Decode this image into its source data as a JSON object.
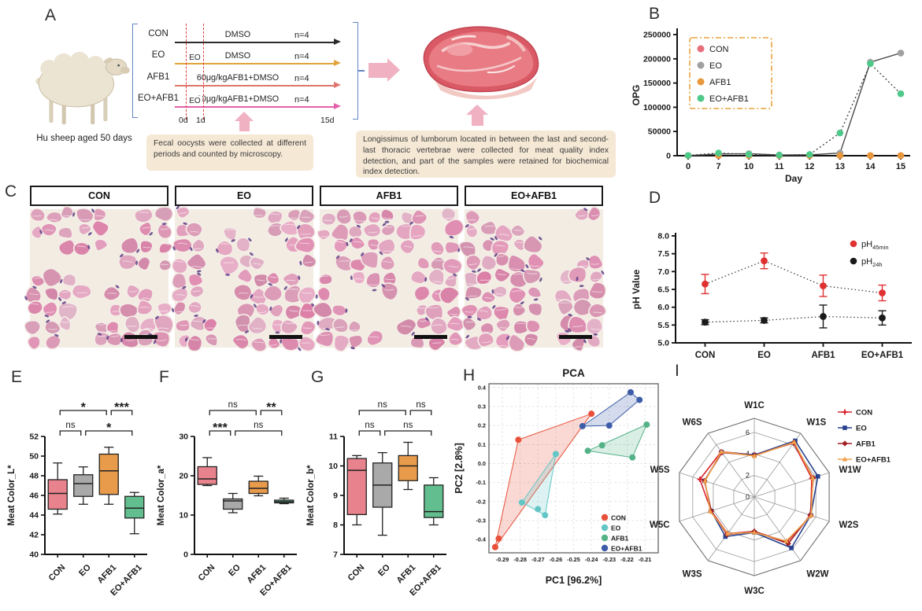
{
  "figure": {
    "panel_a": {
      "tag": "A",
      "sheep_caption": "Hu sheep aged 50 days",
      "eo_box_label": "EO",
      "groups": [
        {
          "name": "CON",
          "treatment": "DMSO",
          "n": "n=4",
          "color": "#2b2b2b"
        },
        {
          "name": "EO",
          "treatment": "DMSO",
          "n": "n=4",
          "color": "#e2a33c",
          "has_eo_box": true
        },
        {
          "name": "AFB1",
          "treatment": "60μg/kgAFB1+DMSO",
          "n": "n=4",
          "color": "#e0756f"
        },
        {
          "name": "EO+AFB1",
          "treatment": "60μg/kgAFB1+DMSO",
          "n": "n=4",
          "color": "#e45fa8",
          "has_eo_box": true
        }
      ],
      "time_start": "0d",
      "time_second": "1d",
      "time_end": "15d",
      "note_left": "Fecal oocysts were collected at different periods and counted by microscopy.",
      "note_right": "Longissimus of lumborum located in between the last and second-last thoracic vertebrae  were collected for meat quality index detection, and part of the samples were retained for biochemical index detection."
    },
    "panel_b_tag": "B",
    "panel_c": {
      "tag": "C",
      "groups": [
        "CON",
        "EO",
        "AFB1",
        "EO+AFB1"
      ]
    },
    "panel_d_tag": "D",
    "panel_e_tag": "E",
    "panel_f_tag": "F",
    "panel_g_tag": "G",
    "panel_h_tag": "H",
    "panel_i_tag": "I"
  },
  "chart_data": [
    {
      "id": "B",
      "type": "line",
      "xlabel": "Day",
      "ylabel": "OPG",
      "x": [
        "0",
        "7",
        "10",
        "11",
        "12",
        "13",
        "14",
        "15"
      ],
      "ylim": [
        0,
        250000
      ],
      "yticks": [
        0,
        50000,
        100000,
        150000,
        200000,
        250000
      ],
      "legend_border_color": "#e9a23b",
      "legend_position": "top-left",
      "series": [
        {
          "name": "CON",
          "color": "#e76f7c",
          "line": "none",
          "values": [
            200,
            300,
            300,
            200,
            300,
            300,
            300,
            300
          ]
        },
        {
          "name": "EO",
          "color": "#a0a0a0",
          "line": "solid",
          "values": [
            300,
            3500,
            4200,
            1500,
            1800,
            5500,
            193000,
            212000
          ]
        },
        {
          "name": "AFB1",
          "color": "#e8973b",
          "line": "none",
          "values": [
            250,
            400,
            350,
            250,
            350,
            400,
            350,
            300
          ]
        },
        {
          "name": "EO+AFB1",
          "color": "#4ec98a",
          "line": "dotted",
          "values": [
            500,
            5500,
            2800,
            1200,
            2500,
            47000,
            190000,
            128000
          ]
        }
      ]
    },
    {
      "id": "D",
      "type": "point-error",
      "ylabel": "pH Value",
      "categories": [
        "CON",
        "EO",
        "AFB1",
        "EO+AFB1"
      ],
      "ylim": [
        5.0,
        8.0
      ],
      "yticks": [
        5.0,
        5.5,
        6.0,
        6.5,
        7.0,
        7.5,
        8.0
      ],
      "series": [
        {
          "name": "pH45min",
          "legend_base": "pH",
          "legend_sub": "45min",
          "color": "#e03131",
          "values": [
            6.65,
            7.3,
            6.6,
            6.4
          ],
          "errors": [
            0.27,
            0.22,
            0.3,
            0.22
          ]
        },
        {
          "name": "pH24h",
          "legend_base": "pH",
          "legend_sub": "24h",
          "color": "#1a1a1a",
          "values": [
            5.58,
            5.63,
            5.74,
            5.7
          ],
          "errors": [
            0.07,
            0.07,
            0.32,
            0.2
          ]
        }
      ]
    },
    {
      "id": "E",
      "type": "box",
      "ylabel": "Meat Color_L*",
      "categories": [
        "CON",
        "EO",
        "AFB1",
        "EO+AFB1"
      ],
      "ylim": [
        40,
        52
      ],
      "yticks": [
        40,
        42,
        44,
        46,
        48,
        50,
        52
      ],
      "colors": [
        "#e8828c",
        "#a9a9a9",
        "#e89b4b",
        "#62be8e"
      ],
      "boxes": [
        [
          44.1,
          44.6,
          46.2,
          47.6,
          49.3
        ],
        [
          45.1,
          45.9,
          47.2,
          48.1,
          48.9
        ],
        [
          45.1,
          46.1,
          48.5,
          50.2,
          50.9
        ],
        [
          42.1,
          43.7,
          44.7,
          45.9,
          46.3
        ]
      ],
      "significance": [
        {
          "a": 0,
          "b": 1,
          "label": "ns",
          "row": 1
        },
        {
          "a": 1,
          "b": 3,
          "label": "*",
          "row": 1
        },
        {
          "a": 0,
          "b": 2,
          "label": "*",
          "row": 2
        },
        {
          "a": 2,
          "b": 3,
          "label": "***",
          "row": 2
        }
      ]
    },
    {
      "id": "F",
      "type": "box",
      "ylabel": "Meat Color_a*",
      "categories": [
        "CON",
        "EO",
        "AFB1",
        "EO+AFB1"
      ],
      "ylim": [
        0,
        30
      ],
      "yticks": [
        0,
        10,
        20,
        30
      ],
      "colors": [
        "#e8828c",
        "#a9a9a9",
        "#e89b4b",
        "#62be8e"
      ],
      "boxes": [
        [
          17.5,
          17.8,
          19.2,
          22.3,
          24.6
        ],
        [
          10.6,
          11.5,
          13.6,
          14.1,
          15.5
        ],
        [
          14.9,
          15.5,
          16.8,
          18.6,
          19.9
        ],
        [
          12.9,
          13.1,
          13.4,
          13.8,
          14.3
        ]
      ],
      "significance": [
        {
          "a": 0,
          "b": 1,
          "label": "***",
          "row": 1
        },
        {
          "a": 1,
          "b": 3,
          "label": "ns",
          "row": 1
        },
        {
          "a": 0,
          "b": 2,
          "label": "ns",
          "row": 2
        },
        {
          "a": 2,
          "b": 3,
          "label": "**",
          "row": 2
        }
      ]
    },
    {
      "id": "G",
      "type": "box",
      "ylabel": "Meat Color_b*",
      "categories": [
        "CON",
        "EO",
        "AFB1",
        "EO+AFB1"
      ],
      "ylim": [
        7,
        11
      ],
      "yticks": [
        7,
        8,
        9,
        10,
        11
      ],
      "colors": [
        "#e8828c",
        "#a9a9a9",
        "#e89b4b",
        "#62be8e"
      ],
      "boxes": [
        [
          8.0,
          8.35,
          9.85,
          10.25,
          10.35
        ],
        [
          7.65,
          8.6,
          9.35,
          10.1,
          10.45
        ],
        [
          9.2,
          9.5,
          10.0,
          10.35,
          10.8
        ],
        [
          8.0,
          8.25,
          8.45,
          9.35,
          9.6
        ]
      ],
      "significance": [
        {
          "a": 0,
          "b": 1,
          "label": "ns",
          "row": 1
        },
        {
          "a": 1,
          "b": 3,
          "label": "ns",
          "row": 1
        },
        {
          "a": 0,
          "b": 2,
          "label": "ns",
          "row": 2
        },
        {
          "a": 2,
          "b": 3,
          "label": "ns",
          "row": 2
        }
      ]
    },
    {
      "id": "H",
      "type": "scatter",
      "title": "PCA",
      "xlabel": "PC1 [96.2%]",
      "ylabel": "PC2 [2.8%]",
      "xlim": [
        -0.2975,
        -0.2025
      ],
      "xticks": [
        -0.29,
        -0.28,
        -0.27,
        -0.26,
        -0.25,
        -0.24,
        -0.23,
        -0.22,
        -0.21
      ],
      "ylim": [
        -0.47,
        0.42
      ],
      "yticks": [
        -0.4,
        -0.3,
        -0.2,
        -0.1,
        0.0,
        0.1,
        0.2,
        0.3,
        0.4
      ],
      "groups": [
        {
          "name": "CON",
          "color": "#e8503a",
          "points": [
            [
              -0.294,
              -0.44
            ],
            [
              -0.292,
              -0.395
            ],
            [
              -0.281,
              0.125
            ],
            [
              -0.24,
              0.262
            ]
          ]
        },
        {
          "name": "EO",
          "color": "#63c6c6",
          "points": [
            [
              -0.279,
              -0.205
            ],
            [
              -0.27,
              -0.24
            ],
            [
              -0.266,
              -0.272
            ],
            [
              -0.26,
              0.05
            ]
          ]
        },
        {
          "name": "AFB1",
          "color": "#54b287",
          "points": [
            [
              -0.242,
              0.067
            ],
            [
              -0.234,
              0.096
            ],
            [
              -0.217,
              0.032
            ],
            [
              -0.209,
              0.205
            ]
          ]
        },
        {
          "name": "EO+AFB1",
          "color": "#3c5ca8",
          "points": [
            [
              -0.245,
              0.197
            ],
            [
              -0.23,
              0.2
            ],
            [
              -0.218,
              0.375
            ],
            [
              -0.213,
              0.335
            ]
          ]
        }
      ]
    },
    {
      "id": "I",
      "type": "radar",
      "axes": [
        "W1C",
        "W1S",
        "W1W",
        "W2S",
        "W2W",
        "W3C",
        "W3S",
        "W5C",
        "W5S",
        "W6S"
      ],
      "rticks": [
        0,
        2,
        4,
        6
      ],
      "rmax": 7.3,
      "series": [
        {
          "name": "CON",
          "color": "#d8232e",
          "marker": "plus",
          "values": [
            3.9,
            6.2,
            5.6,
            5.5,
            5.15,
            3.2,
            4.2,
            4.2,
            5.3,
            5.2
          ]
        },
        {
          "name": "EO",
          "color": "#27418f",
          "marker": "square",
          "values": [
            3.9,
            6.45,
            6.2,
            5.5,
            5.85,
            3.3,
            4.55,
            4.2,
            4.85,
            5.15
          ]
        },
        {
          "name": "AFB1",
          "color": "#a31f24",
          "marker": "diamond",
          "values": [
            3.85,
            6.25,
            5.75,
            5.45,
            5.35,
            3.2,
            4.3,
            4.2,
            4.85,
            5.1
          ]
        },
        {
          "name": "EO+AFB1",
          "color": "#efa04b",
          "marker": "triangle",
          "values": [
            3.8,
            6.3,
            5.7,
            5.55,
            5.05,
            3.3,
            4.2,
            4.3,
            4.8,
            5.2
          ]
        }
      ]
    }
  ]
}
